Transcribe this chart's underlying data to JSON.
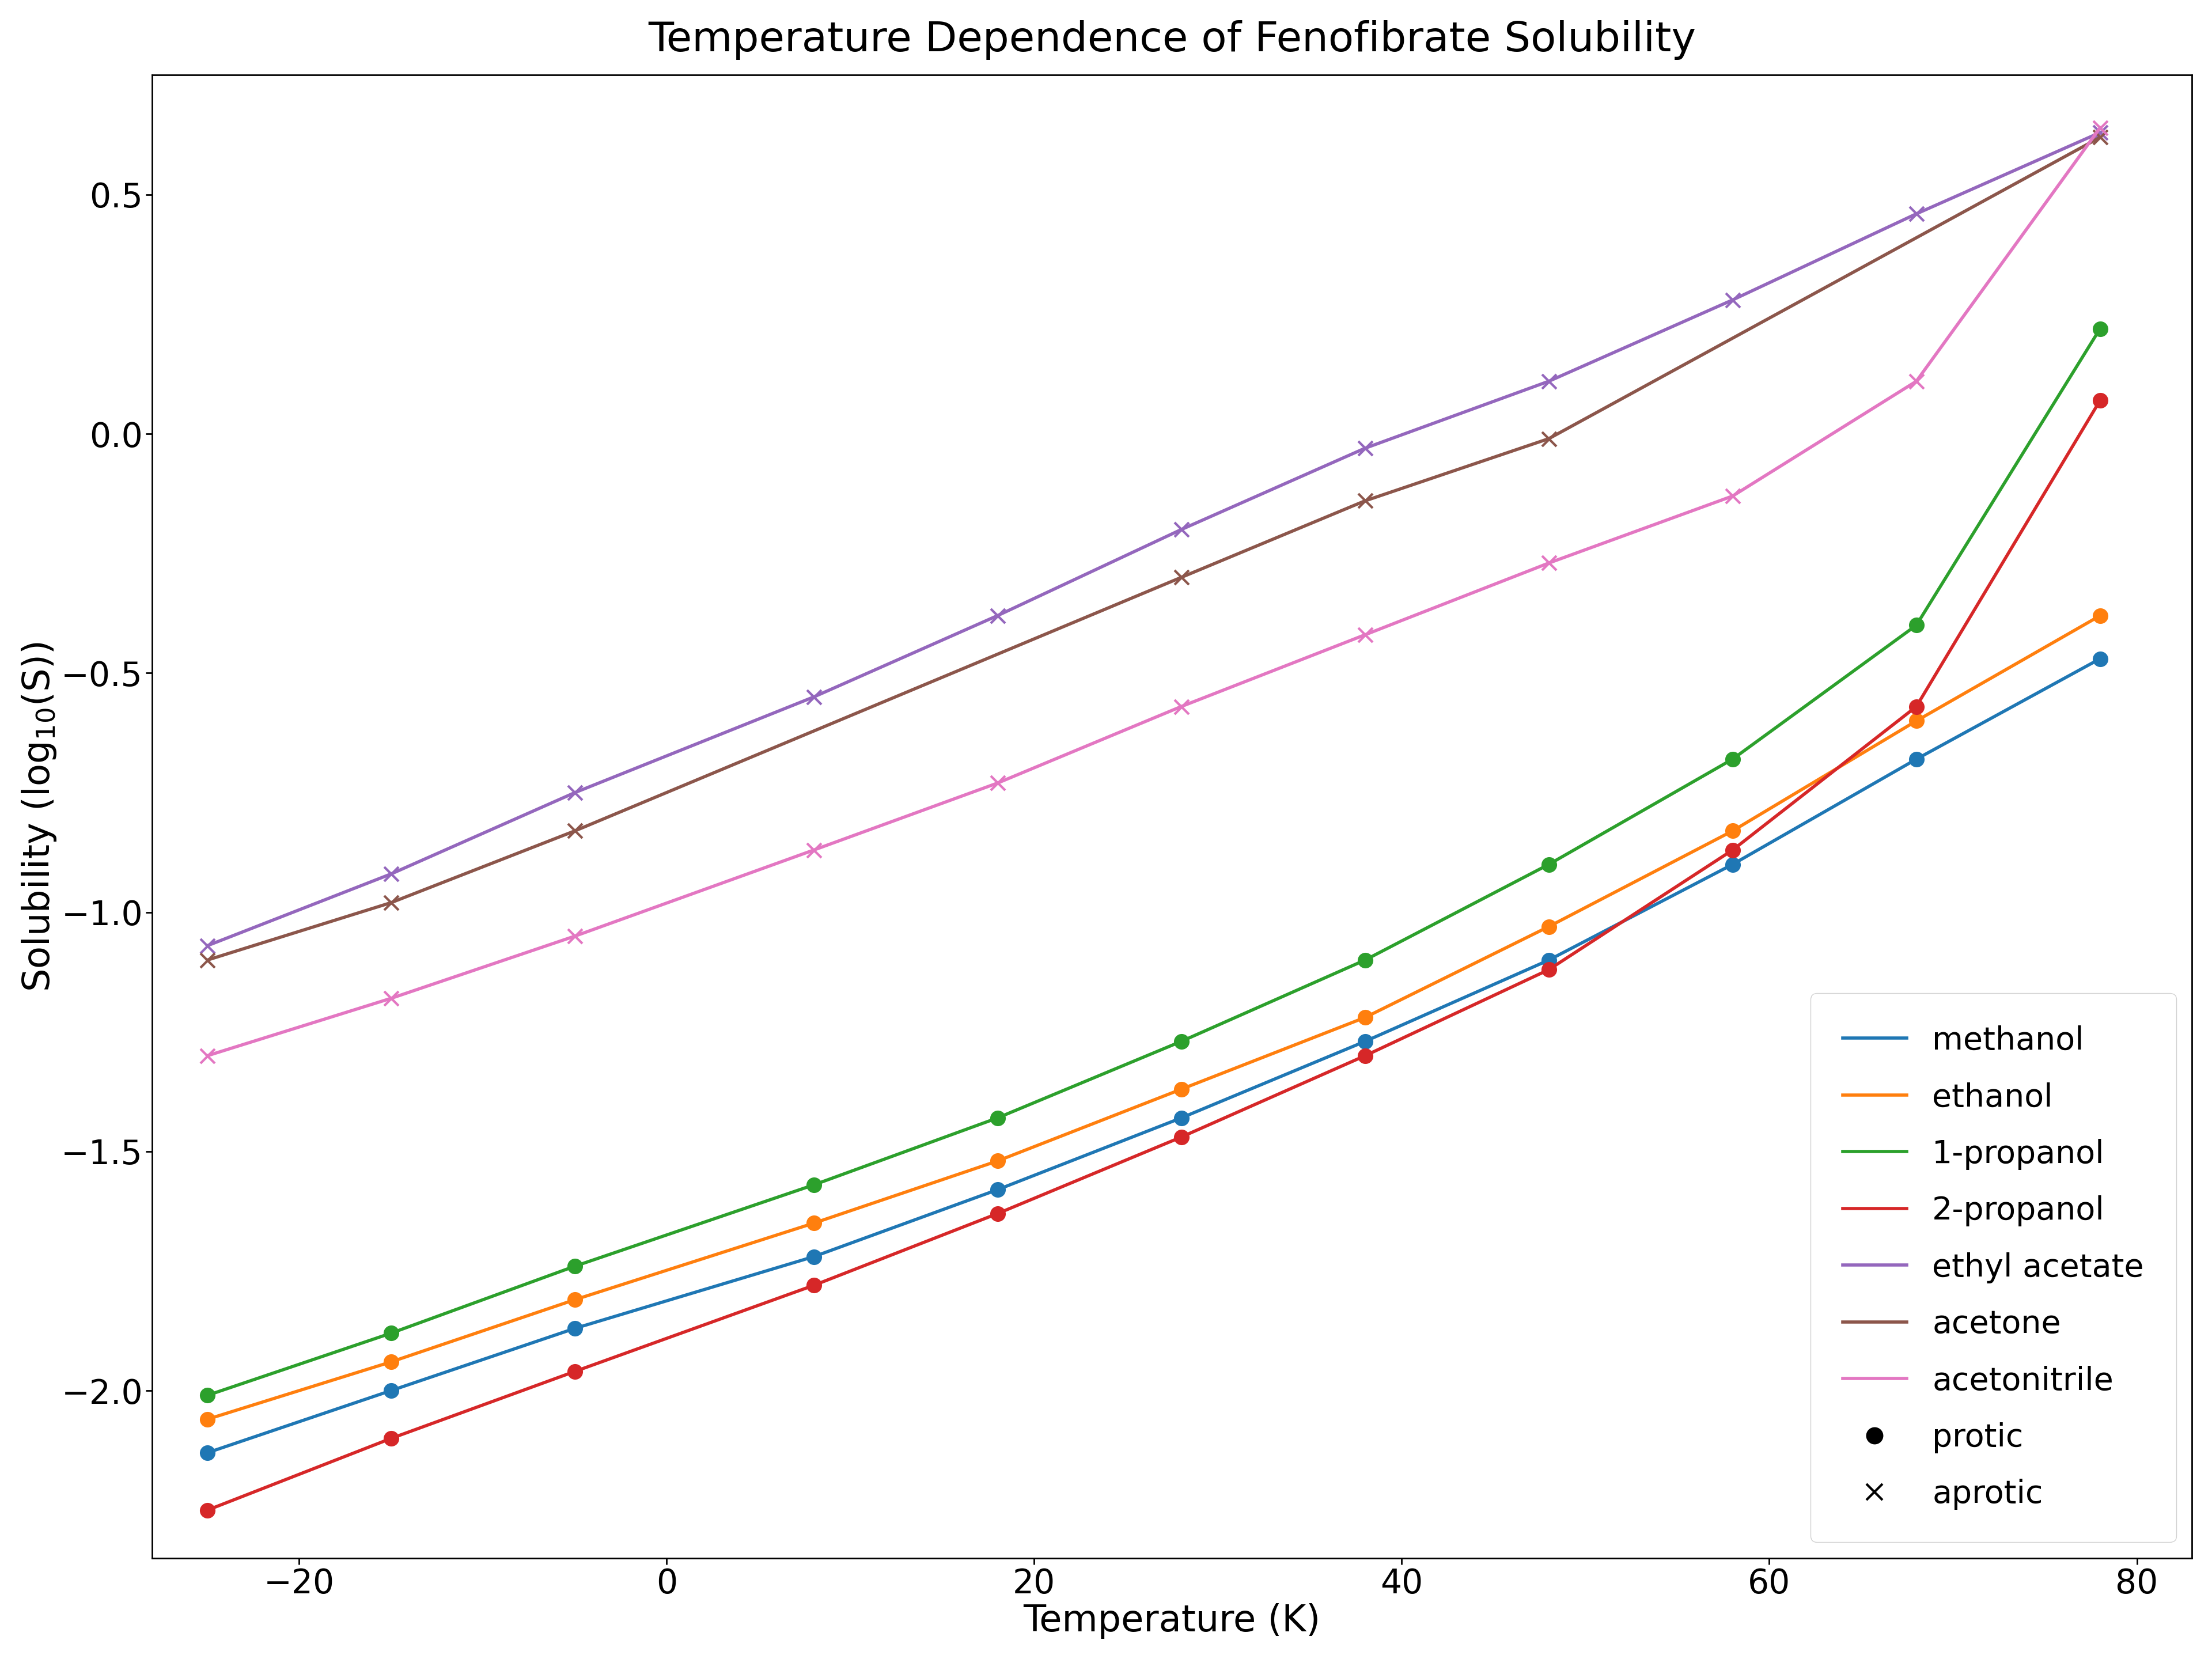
{
  "title": "Temperature Dependence of Fenofibrate Solubility",
  "xlabel": "Temperature (K)",
  "ylabel": "Solubility (log$_{10}$(S))",
  "xlim": [
    -28,
    83
  ],
  "ylim": [
    -2.35,
    0.75
  ],
  "xticks": [
    -20,
    0,
    20,
    40,
    60,
    80
  ],
  "yticks": [
    -2.0,
    -1.5,
    -1.0,
    -0.5,
    0.0,
    0.5
  ],
  "solvents": {
    "methanol": {
      "color": "#1f77b4",
      "marker": "o",
      "markersize": 18,
      "linewidth": 4,
      "temps": [
        -25,
        -15,
        -5,
        8,
        18,
        28,
        38,
        48,
        58,
        68,
        78
      ],
      "solubility": [
        -2.13,
        -2.0,
        -1.87,
        -1.72,
        -1.58,
        -1.43,
        -1.27,
        -1.1,
        -0.9,
        -0.68,
        -0.47
      ]
    },
    "ethanol": {
      "color": "#ff7f0e",
      "marker": "o",
      "markersize": 18,
      "linewidth": 4,
      "temps": [
        -25,
        -15,
        -5,
        8,
        18,
        28,
        38,
        48,
        58,
        68,
        78
      ],
      "solubility": [
        -2.06,
        -1.94,
        -1.81,
        -1.65,
        -1.52,
        -1.37,
        -1.22,
        -1.03,
        -0.83,
        -0.6,
        -0.38
      ]
    },
    "1-propanol": {
      "color": "#2ca02c",
      "marker": "o",
      "markersize": 18,
      "linewidth": 4,
      "temps": [
        -25,
        -15,
        -5,
        8,
        18,
        28,
        38,
        48,
        58,
        68,
        78
      ],
      "solubility": [
        -2.01,
        -1.88,
        -1.74,
        -1.57,
        -1.43,
        -1.27,
        -1.1,
        -0.9,
        -0.68,
        -0.4,
        0.22
      ]
    },
    "2-propanol": {
      "color": "#d62728",
      "marker": "o",
      "markersize": 18,
      "linewidth": 4,
      "temps": [
        -25,
        -15,
        -5,
        8,
        18,
        28,
        38,
        48,
        58,
        68,
        78
      ],
      "solubility": [
        -2.25,
        -2.1,
        -1.96,
        -1.78,
        -1.63,
        -1.47,
        -1.3,
        -1.12,
        -0.87,
        -0.57,
        0.07
      ]
    },
    "ethyl acetate": {
      "color": "#9467bd",
      "marker": "x",
      "markersize": 18,
      "linewidth": 4,
      "temps": [
        -25,
        -15,
        -5,
        8,
        18,
        28,
        38,
        48,
        58,
        68,
        78
      ],
      "solubility": [
        -1.07,
        -0.92,
        -0.75,
        -0.55,
        -0.38,
        -0.2,
        -0.03,
        0.11,
        0.28,
        0.46,
        0.63
      ]
    },
    "acetone": {
      "color": "#8c564b",
      "marker": "x",
      "markersize": 18,
      "linewidth": 4,
      "temps": [
        -25,
        -15,
        -5,
        28,
        38,
        48,
        78
      ],
      "solubility": [
        -1.1,
        -0.98,
        -0.83,
        -0.3,
        -0.14,
        -0.01,
        0.62
      ]
    },
    "acetonitrile": {
      "color": "#e377c2",
      "marker": "x",
      "markersize": 18,
      "linewidth": 4,
      "temps": [
        -25,
        -15,
        -5,
        8,
        18,
        28,
        38,
        48,
        58,
        68,
        78
      ],
      "solubility": [
        -1.3,
        -1.18,
        -1.05,
        -0.87,
        -0.73,
        -0.57,
        -0.42,
        -0.27,
        -0.13,
        0.11,
        0.64
      ]
    }
  },
  "legend_solvents": [
    "methanol",
    "ethanol",
    "1-propanol",
    "2-propanol",
    "ethyl acetate",
    "acetone",
    "acetonitrile"
  ],
  "legend_loc": "lower right",
  "background_color": "#ffffff",
  "title_fontsize": 52,
  "label_fontsize": 46,
  "tick_fontsize": 42,
  "legend_fontsize": 40
}
